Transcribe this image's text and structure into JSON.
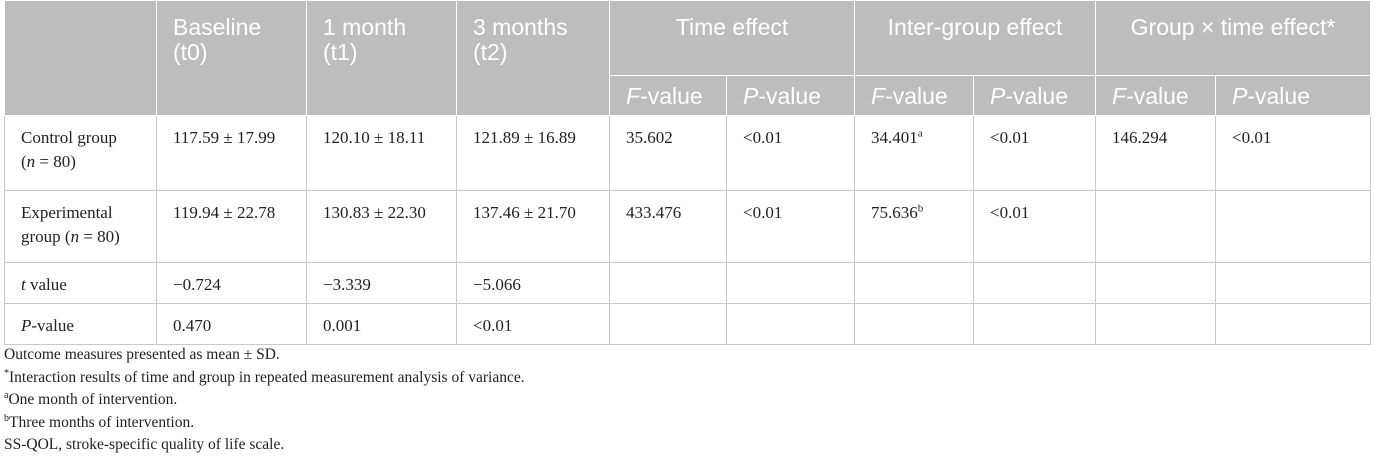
{
  "table": {
    "header": {
      "baseline": "Baseline",
      "baseline_sub": "(t0)",
      "m1": "1 month",
      "m1_sub": "(t1)",
      "m3": "3 months",
      "m3_sub": "(t2)",
      "time_effect": "Time effect",
      "inter_group": "Inter-group effect",
      "interaction": "Group × time effect*",
      "f_letter": "F",
      "f_suffix": "-value",
      "p_letter": "P",
      "p_suffix": "-value"
    },
    "rows": {
      "control": {
        "label_a": "Control group",
        "label_b_pre": "(",
        "label_b_n": "n",
        "label_b_post": " = 80)",
        "baseline": "117.59 ± 17.99",
        "m1": "120.10 ± 18.11",
        "m3": "121.89 ± 16.89",
        "time_f": "35.602",
        "time_p": "<0.01",
        "inter_f": "34.401",
        "inter_f_sup": "a",
        "inter_p": "<0.01",
        "int_f": "146.294",
        "int_p": "<0.01"
      },
      "experimental": {
        "label_a": "Experimental",
        "label_b_pre": "group (",
        "label_b_n": "n",
        "label_b_post": " = 80)",
        "baseline": "119.94 ± 22.78",
        "m1": "130.83 ± 22.30",
        "m3": "137.46 ± 21.70",
        "time_f": "433.476",
        "time_p": "<0.01",
        "inter_f": "75.636",
        "inter_f_sup": "b",
        "inter_p": "<0.01"
      },
      "t_value": {
        "label_letter": "t",
        "label_rest": " value",
        "baseline": "−0.724",
        "m1": "−3.339",
        "m3": "−5.066"
      },
      "p_value": {
        "label_letter": "P",
        "label_rest": "-value",
        "baseline": "0.470",
        "m1": "0.001",
        "m3": "<0.01"
      }
    }
  },
  "notes": {
    "n1": "Outcome measures presented as mean ± SD.",
    "n2_mark": "*",
    "n2": "Interaction results of time and group in repeated measurement analysis of variance.",
    "n3_mark": "a",
    "n3": "One month of intervention.",
    "n4_mark": "b",
    "n4": "Three months of intervention.",
    "n5": "SS-QOL, stroke-specific quality of life scale."
  },
  "colors": {
    "header_bg": "#bdbdbd",
    "header_text": "#ffffff",
    "grid": "#c9c9c9"
  }
}
